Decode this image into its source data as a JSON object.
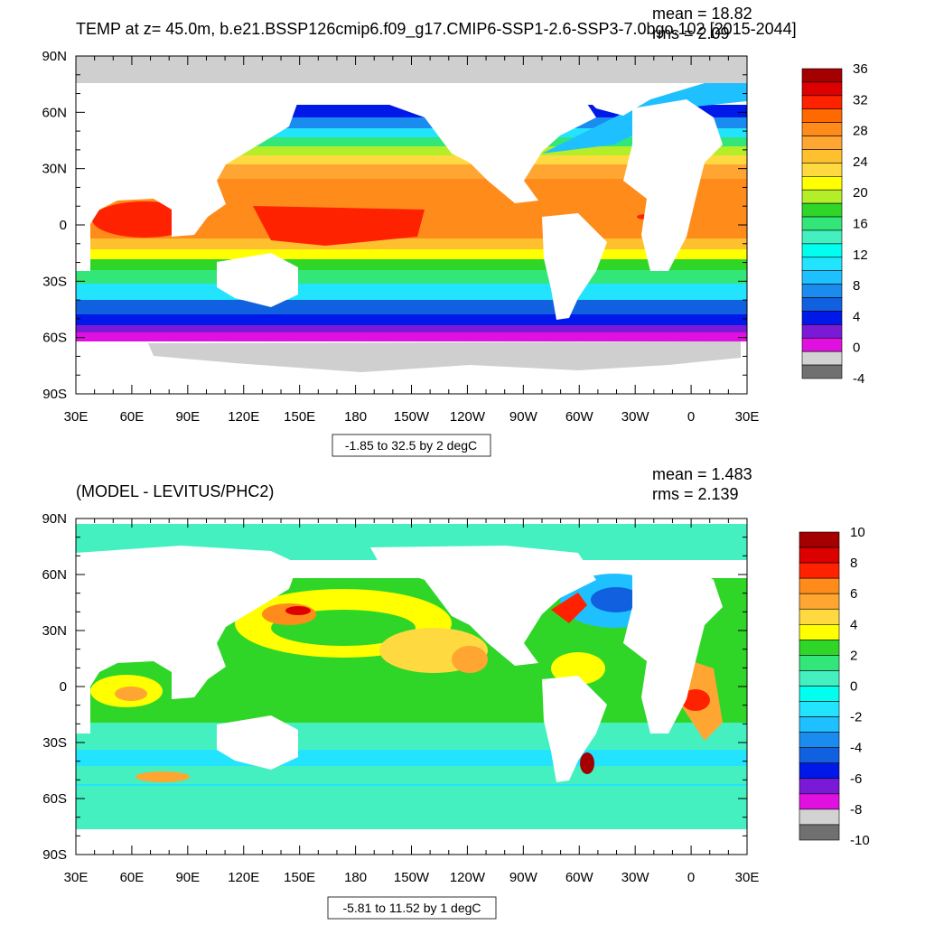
{
  "chart_data": [
    {
      "type": "heatmap",
      "title": "TEMP at z=  45.0m, b.e21.BSSP126cmip6.f09_g17.CMIP6-SSP1-2.6-SSP3-7.0bgo.102 [2015-2044]",
      "stats": {
        "mean_label": "mean = 18.82",
        "rms_label": "rms = 2.09"
      },
      "contour_info": "-1.85 to 32.5 by 2 degC",
      "x_ticks": [
        "30E",
        "60E",
        "90E",
        "120E",
        "150E",
        "180",
        "150W",
        "120W",
        "90W",
        "60W",
        "30W",
        "0",
        "30E"
      ],
      "y_ticks": [
        "90N",
        "60N",
        "30N",
        "0",
        "30S",
        "60S",
        "90S"
      ],
      "colorbar": {
        "labels": [
          "36",
          "32",
          "28",
          "24",
          "20",
          "16",
          "12",
          "8",
          "4",
          "0",
          "-4"
        ],
        "colors": [
          "#a50000",
          "#dd0000",
          "#ff2200",
          "#ff6a00",
          "#ff8c1a",
          "#ffa532",
          "#ffc030",
          "#ffd940",
          "#ffff00",
          "#b4ee28",
          "#2fd628",
          "#33e67a",
          "#44f0c0",
          "#00ffee",
          "#22e4ff",
          "#1ec0ff",
          "#1a8cf0",
          "#1060e0",
          "#0018e8",
          "#7a1ad6",
          "#e010e0",
          "#d2d2d2",
          "#707070"
        ]
      }
    },
    {
      "type": "heatmap",
      "title": "(MODEL - LEVITUS/PHC2)",
      "stats": {
        "mean_label": "mean = 1.483",
        "rms_label": "rms = 2.139"
      },
      "contour_info": "-5.81 to 11.52 by 1 degC",
      "x_ticks": [
        "30E",
        "60E",
        "90E",
        "120E",
        "150E",
        "180",
        "150W",
        "120W",
        "90W",
        "60W",
        "30W",
        "0",
        "30E"
      ],
      "y_ticks": [
        "90N",
        "60N",
        "30N",
        "0",
        "30S",
        "60S",
        "90S"
      ],
      "colorbar": {
        "labels": [
          "10",
          "8",
          "6",
          "4",
          "2",
          "0",
          "-2",
          "-4",
          "-6",
          "-8",
          "-10"
        ],
        "colors": [
          "#a50000",
          "#dd0000",
          "#ff2200",
          "#ff8c1a",
          "#ffa532",
          "#ffd940",
          "#ffff00",
          "#2fd628",
          "#33e67a",
          "#44f0c0",
          "#00ffee",
          "#22e4ff",
          "#1ec0ff",
          "#1a8cf0",
          "#1060e0",
          "#0018e8",
          "#7a1ad6",
          "#e010e0",
          "#d2d2d2",
          "#707070"
        ]
      }
    }
  ],
  "colors": {
    "land": "#ffffff",
    "ice": "#cfcfcf"
  }
}
